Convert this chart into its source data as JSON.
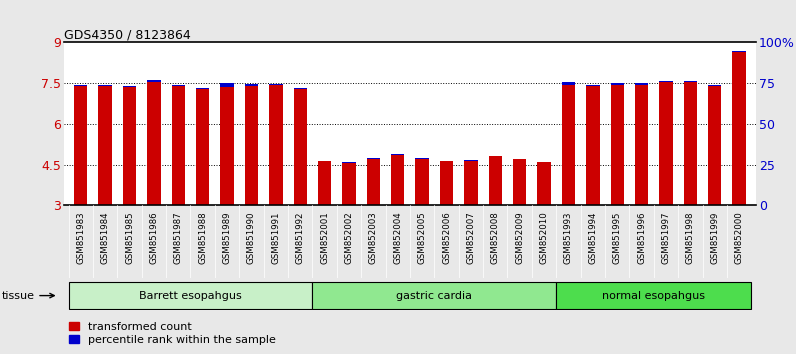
{
  "title": "GDS4350 / 8123864",
  "samples": [
    "GSM851983",
    "GSM851984",
    "GSM851985",
    "GSM851986",
    "GSM851987",
    "GSM851988",
    "GSM851989",
    "GSM851990",
    "GSM851991",
    "GSM851992",
    "GSM852001",
    "GSM852002",
    "GSM852003",
    "GSM852004",
    "GSM852005",
    "GSM852006",
    "GSM852007",
    "GSM852008",
    "GSM852009",
    "GSM852010",
    "GSM851993",
    "GSM851994",
    "GSM851995",
    "GSM851996",
    "GSM851997",
    "GSM851998",
    "GSM851999",
    "GSM852000"
  ],
  "red_values": [
    7.4,
    7.4,
    7.35,
    7.55,
    7.4,
    7.3,
    7.35,
    7.4,
    7.45,
    7.3,
    4.62,
    4.57,
    4.7,
    4.85,
    4.72,
    4.62,
    4.64,
    4.8,
    4.7,
    4.58,
    7.45,
    7.4,
    7.45,
    7.45,
    7.55,
    7.55,
    7.4,
    8.65
  ],
  "blue_values": [
    7.45,
    7.42,
    7.38,
    7.6,
    7.42,
    7.34,
    7.5,
    7.46,
    7.48,
    7.32,
    4.65,
    4.59,
    4.76,
    4.88,
    4.74,
    4.63,
    4.66,
    4.83,
    4.72,
    4.6,
    7.53,
    7.42,
    7.5,
    7.5,
    7.58,
    7.58,
    7.43,
    8.7
  ],
  "groups": [
    {
      "label": "Barrett esopahgus",
      "start": 0,
      "end": 9,
      "color": "#c8f0c8"
    },
    {
      "label": "gastric cardia",
      "start": 10,
      "end": 19,
      "color": "#90e890"
    },
    {
      "label": "normal esopahgus",
      "start": 20,
      "end": 27,
      "color": "#4ddd4d"
    }
  ],
  "ymin": 3,
  "ymax": 9,
  "yticks": [
    3,
    4.5,
    6,
    7.5,
    9
  ],
  "ytick_labels": [
    "3",
    "4.5",
    "6",
    "7.5",
    "9"
  ],
  "right_yticks": [
    0,
    25,
    50,
    75,
    100
  ],
  "right_ytick_labels": [
    "0",
    "25",
    "50",
    "75",
    "100%"
  ],
  "bar_width": 0.55,
  "red_color": "#cc0000",
  "blue_color": "#0000cc",
  "axis_color": "#cc0000",
  "right_axis_color": "#0000cc",
  "bg_color": "#e8e8e8",
  "plot_bg": "#ffffff",
  "xtick_bg": "#d0d0d0"
}
